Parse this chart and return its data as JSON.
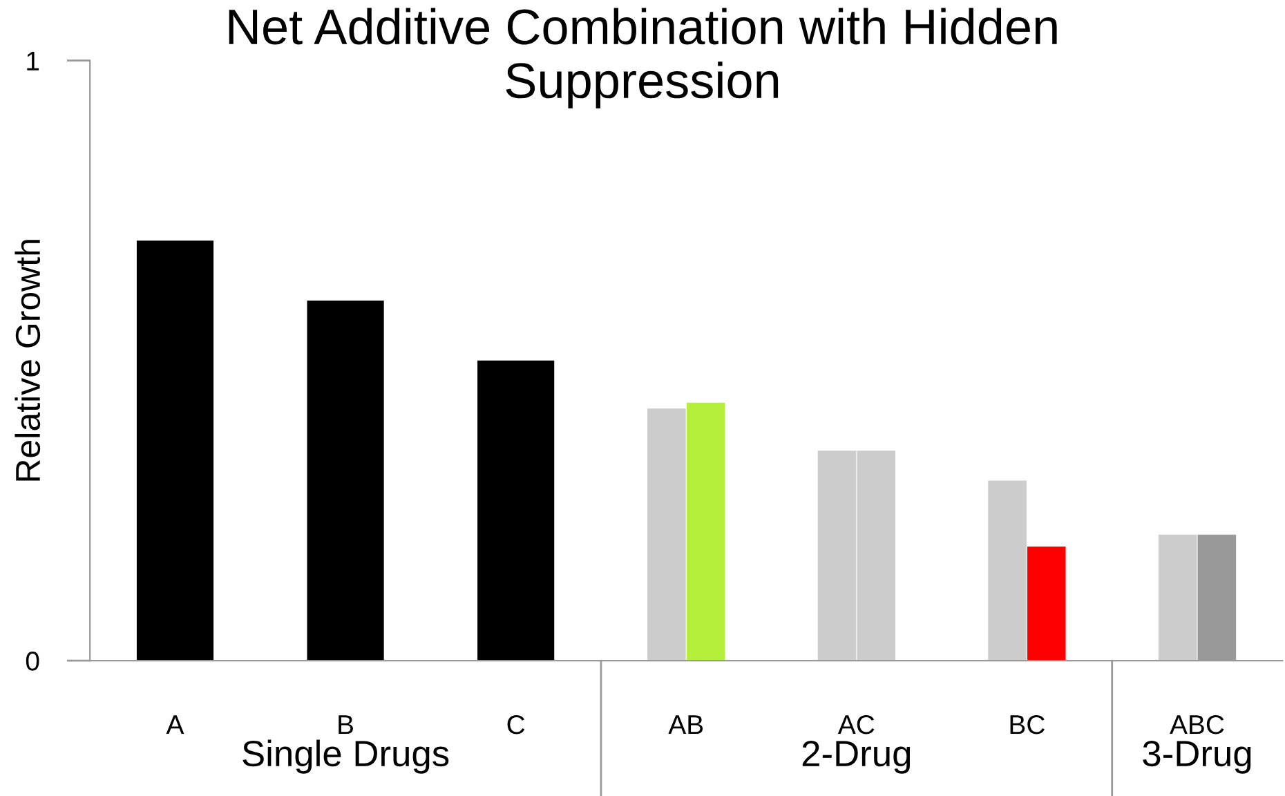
{
  "chart_data": {
    "type": "bar",
    "title": "Net Additive Combination with Hidden\nSuppression",
    "ylabel": "Relative Growth",
    "categories": [
      "A",
      "B",
      "C",
      "AB",
      "AC",
      "BC",
      "ABC"
    ],
    "series": [
      {
        "colors": [
          "#cccccc",
          "#cccccc",
          "#cccccc",
          "#cccccc",
          "#cccccc",
          "#cccccc",
          "#cccccc"
        ],
        "values": [
          null,
          null,
          null,
          0.42,
          0.35,
          0.3,
          0.21
        ]
      },
      {
        "colors": [
          "#000000",
          "#000000",
          "#000000",
          "#b5ef3b",
          "#cccccc",
          "#ff0000",
          "#999999"
        ],
        "values": [
          0.7,
          0.6,
          0.5,
          0.43,
          0.35,
          0.19,
          0.21
        ]
      }
    ],
    "ylim": [
      0,
      1
    ],
    "yticks": [
      0,
      1
    ],
    "grid": false,
    "legend": false,
    "annotations": [
      "Single Drugs",
      "2-Drug",
      "3-Drug"
    ]
  }
}
